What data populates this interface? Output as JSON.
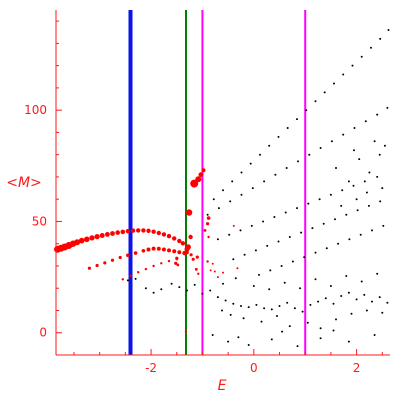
{
  "chart_data": {
    "type": "scatter",
    "title": "",
    "xlabel": "E",
    "ylabel": "<M>",
    "xlim": [
      -3.85,
      2.65
    ],
    "ylim": [
      -10,
      145
    ],
    "x_ticks": [
      -2,
      0,
      2
    ],
    "x_tick_labels": [
      "-2",
      "0",
      "2"
    ],
    "y_ticks": [
      0,
      50,
      100
    ],
    "y_tick_labels": [
      "0",
      "50",
      "100"
    ],
    "grid": false,
    "legend": "none",
    "colors": {
      "axes": "#ff1a1a",
      "red_points": "#ff0000",
      "black_points": "#000000",
      "blue_line": "#0a14e6",
      "green_line": "#008000",
      "magenta_line": "#ff00ff"
    },
    "vertical_lines": [
      {
        "x": -2.4,
        "color": "#0a14e6",
        "width": 4
      },
      {
        "x": -1.32,
        "color": "#008000",
        "width": 2
      },
      {
        "x": -1.0,
        "color": "#ff00ff",
        "width": 2
      },
      {
        "x": 1.0,
        "color": "#ff00ff",
        "width": 2
      }
    ],
    "series": [
      {
        "color": "#ff0000",
        "points": [
          [
            -3.82,
            37.5,
            3.5
          ],
          [
            -3.75,
            38.0,
            3.5
          ],
          [
            -3.68,
            38.5,
            3.5
          ],
          [
            -3.6,
            39.2,
            3.5
          ],
          [
            -3.52,
            40.0,
            3.2
          ],
          [
            -3.44,
            40.7,
            3.0
          ],
          [
            -3.35,
            41.4,
            2.8
          ],
          [
            -3.25,
            42.0,
            2.8
          ],
          [
            -3.15,
            42.6,
            2.6
          ],
          [
            -3.05,
            43.2,
            2.6
          ],
          [
            -2.95,
            43.7,
            2.5
          ],
          [
            -2.85,
            44.2,
            2.4
          ],
          [
            -2.75,
            44.6,
            2.4
          ],
          [
            -2.65,
            45.0,
            2.3
          ],
          [
            -2.55,
            45.3,
            2.3
          ],
          [
            -2.45,
            45.6,
            2.2
          ],
          [
            -2.35,
            45.9,
            2.2
          ],
          [
            -2.25,
            46.0,
            2.2
          ],
          [
            -2.15,
            46.0,
            2.2
          ],
          [
            -2.05,
            45.8,
            2.2
          ],
          [
            -1.95,
            45.4,
            2.2
          ],
          [
            -1.85,
            44.8,
            2.2
          ],
          [
            -1.75,
            44.2,
            2.2
          ],
          [
            -1.65,
            43.4,
            2.2
          ],
          [
            -1.55,
            42.4,
            2.2
          ],
          [
            -1.45,
            41.2,
            2.2
          ],
          [
            -1.38,
            40.2,
            2.2
          ],
          [
            -3.2,
            29.0,
            1.6
          ],
          [
            -3.05,
            30.2,
            1.6
          ],
          [
            -2.9,
            31.4,
            1.6
          ],
          [
            -2.75,
            32.6,
            1.6
          ],
          [
            -2.6,
            33.8,
            1.6
          ],
          [
            -2.45,
            34.8,
            1.8
          ],
          [
            -2.3,
            35.8,
            1.8
          ],
          [
            -2.15,
            36.8,
            1.8
          ],
          [
            -2.05,
            37.4,
            2.0
          ],
          [
            -1.95,
            37.8,
            2.0
          ],
          [
            -1.85,
            37.7,
            2.0
          ],
          [
            -1.75,
            37.4,
            2.0
          ],
          [
            -1.65,
            37.0,
            2.0
          ],
          [
            -1.55,
            36.6,
            2.0
          ],
          [
            -1.45,
            36.2,
            2.0
          ],
          [
            -1.35,
            35.8,
            2.2
          ],
          [
            -1.3,
            37.5,
            2.5
          ],
          [
            -2.55,
            24.0,
            1.2
          ],
          [
            -2.4,
            25.6,
            1.2
          ],
          [
            -2.25,
            27.2,
            1.2
          ],
          [
            -2.1,
            28.6,
            1.2
          ],
          [
            -1.95,
            30.0,
            1.2
          ],
          [
            -1.8,
            31.2,
            1.2
          ],
          [
            -1.65,
            32.2,
            1.2
          ],
          [
            -1.5,
            33.0,
            1.2
          ],
          [
            -1.52,
            31.2,
            1.6
          ],
          [
            -1.5,
            33.5,
            1.6
          ],
          [
            -1.48,
            30.5,
            1.4
          ],
          [
            -1.3,
            36.0,
            1.8
          ],
          [
            -1.22,
            35.0,
            1.6
          ],
          [
            -1.28,
            38.5,
            2.8
          ],
          [
            -1.26,
            54.0,
            3.2
          ],
          [
            -1.23,
            43.0,
            2.2
          ],
          [
            -1.18,
            33.0,
            1.6
          ],
          [
            -1.1,
            34.0,
            1.6
          ],
          [
            -1.12,
            28.5,
            1.4
          ],
          [
            -1.08,
            26.5,
            1.2
          ],
          [
            -1.16,
            67.0,
            4.0
          ],
          [
            -1.08,
            69.0,
            3.0
          ],
          [
            -1.03,
            71.0,
            2.4
          ],
          [
            -0.98,
            73.0,
            2.0
          ],
          [
            -0.88,
            51.5,
            1.8
          ],
          [
            -0.9,
            49.0,
            1.6
          ],
          [
            -0.95,
            46.0,
            1.4
          ],
          [
            -0.88,
            43.0,
            1.2
          ],
          [
            -0.9,
            32.0,
            1.2
          ],
          [
            -0.84,
            28.0,
            1.0
          ],
          [
            -0.8,
            31.0,
            1.0
          ],
          [
            -0.76,
            27.5,
            1.0
          ],
          [
            -0.7,
            25.0,
            1.0
          ],
          [
            -0.6,
            27.0,
            1.0
          ],
          [
            -0.39,
            48.0,
            1.0
          ],
          [
            -0.32,
            29.0,
            1.0
          ],
          [
            -1.32,
            0.5,
            1.2
          ]
        ]
      },
      {
        "color": "#000000",
        "points": [
          [
            -0.78,
            60,
            1
          ],
          [
            -0.6,
            64,
            1
          ],
          [
            -0.42,
            68,
            1
          ],
          [
            -0.24,
            72,
            1
          ],
          [
            -0.06,
            76,
            1
          ],
          [
            0.12,
            80,
            1
          ],
          [
            0.3,
            84,
            1
          ],
          [
            0.48,
            88,
            1
          ],
          [
            0.66,
            92,
            1
          ],
          [
            0.84,
            96,
            1
          ],
          [
            1.02,
            100,
            1
          ],
          [
            1.2,
            104,
            1
          ],
          [
            1.38,
            108,
            1
          ],
          [
            1.56,
            112,
            1
          ],
          [
            1.74,
            116,
            1
          ],
          [
            1.92,
            120,
            1
          ],
          [
            2.1,
            124,
            1
          ],
          [
            2.28,
            128,
            1
          ],
          [
            2.46,
            132,
            1
          ],
          [
            2.62,
            136,
            1
          ],
          [
            -0.9,
            53,
            1
          ],
          [
            -0.68,
            56,
            1
          ],
          [
            -0.46,
            59,
            1
          ],
          [
            -0.24,
            62,
            1
          ],
          [
            -0.02,
            65,
            1
          ],
          [
            0.2,
            68,
            1
          ],
          [
            0.42,
            71,
            1
          ],
          [
            0.64,
            74,
            1
          ],
          [
            0.86,
            77,
            1
          ],
          [
            1.08,
            80,
            1
          ],
          [
            1.3,
            83,
            1
          ],
          [
            1.52,
            86,
            1
          ],
          [
            1.74,
            89,
            1
          ],
          [
            1.96,
            92,
            1
          ],
          [
            2.18,
            95,
            1
          ],
          [
            2.4,
            98,
            1
          ],
          [
            2.6,
            101,
            1
          ],
          [
            -0.7,
            42,
            1
          ],
          [
            -0.48,
            44,
            1
          ],
          [
            -0.26,
            46,
            1
          ],
          [
            -0.04,
            48,
            1
          ],
          [
            0.18,
            50,
            1
          ],
          [
            0.4,
            52,
            1
          ],
          [
            0.62,
            54,
            1
          ],
          [
            0.84,
            56,
            1
          ],
          [
            1.06,
            58,
            1
          ],
          [
            1.28,
            60,
            1
          ],
          [
            1.5,
            62,
            1
          ],
          [
            1.72,
            64,
            1
          ],
          [
            1.94,
            66,
            1
          ],
          [
            2.16,
            68,
            1
          ],
          [
            2.4,
            70,
            1
          ],
          [
            -0.4,
            33,
            1
          ],
          [
            -0.18,
            35,
            1
          ],
          [
            0.04,
            37,
            1
          ],
          [
            0.26,
            39,
            1
          ],
          [
            0.48,
            41,
            1
          ],
          [
            0.7,
            43,
            1
          ],
          [
            0.92,
            45,
            1
          ],
          [
            1.14,
            47,
            1
          ],
          [
            1.36,
            49,
            1
          ],
          [
            1.58,
            51,
            1
          ],
          [
            1.8,
            53,
            1
          ],
          [
            2.02,
            55,
            1
          ],
          [
            2.24,
            57,
            1
          ],
          [
            2.46,
            59,
            1
          ],
          [
            0.1,
            26,
            1
          ],
          [
            0.32,
            28,
            1
          ],
          [
            0.54,
            30,
            1
          ],
          [
            0.76,
            32,
            1
          ],
          [
            0.98,
            34,
            1
          ],
          [
            1.2,
            36,
            1
          ],
          [
            1.42,
            38,
            1
          ],
          [
            1.64,
            40,
            1
          ],
          [
            1.86,
            42,
            1
          ],
          [
            2.08,
            44,
            1
          ],
          [
            2.3,
            46,
            1
          ],
          [
            2.52,
            48,
            1
          ],
          [
            -2.45,
            23.5,
            1
          ],
          [
            -2.3,
            24.2,
            1
          ],
          [
            -2.1,
            20.0,
            1
          ],
          [
            -1.95,
            18.0,
            1
          ],
          [
            -1.8,
            19.5,
            1
          ],
          [
            -1.6,
            22.0,
            1
          ],
          [
            -1.45,
            20.5,
            1
          ],
          [
            -1.3,
            19.0,
            1
          ],
          [
            -1.15,
            21.5,
            1
          ],
          [
            -1.0,
            17.5,
            1
          ],
          [
            -0.85,
            19.0,
            1
          ],
          [
            -0.7,
            16.0,
            1
          ],
          [
            -0.55,
            14.5,
            1
          ],
          [
            -0.4,
            13.0,
            1
          ],
          [
            -0.25,
            12.0,
            1
          ],
          [
            -0.1,
            11.5,
            1
          ],
          [
            0.05,
            12.5,
            1
          ],
          [
            0.2,
            11.0,
            1
          ],
          [
            0.35,
            10.5,
            1
          ],
          [
            0.5,
            12.0,
            1
          ],
          [
            0.65,
            13.5,
            1
          ],
          [
            0.8,
            11.0,
            1
          ],
          [
            0.95,
            9.5,
            1
          ],
          [
            1.1,
            12.5,
            1
          ],
          [
            1.25,
            14.0,
            1
          ],
          [
            1.4,
            15.5,
            1
          ],
          [
            1.55,
            13.0,
            1
          ],
          [
            1.7,
            16.5,
            1
          ],
          [
            1.85,
            18.0,
            1
          ],
          [
            2.0,
            15.0,
            1
          ],
          [
            2.15,
            17.0,
            1
          ],
          [
            2.3,
            14.0,
            1
          ],
          [
            2.45,
            16.0,
            1
          ],
          [
            2.6,
            13.5,
            1
          ],
          [
            -0.62,
            10.0,
            1
          ],
          [
            -0.45,
            8.0,
            1
          ],
          [
            -0.2,
            6.5,
            1
          ],
          [
            0.15,
            5.0,
            1
          ],
          [
            0.45,
            7.5,
            1
          ],
          [
            0.7,
            3.0,
            1
          ],
          [
            1.05,
            4.5,
            1
          ],
          [
            1.3,
            2.0,
            1
          ],
          [
            1.6,
            6.0,
            1
          ],
          [
            1.9,
            8.5,
            1
          ],
          [
            2.2,
            10.0,
            1
          ],
          [
            2.5,
            9.0,
            1
          ],
          [
            -0.5,
            -4.0,
            1
          ],
          [
            -0.1,
            -5.5,
            1
          ],
          [
            0.35,
            -3.0,
            1
          ],
          [
            0.85,
            -6.0,
            1
          ],
          [
            1.3,
            -2.5,
            1
          ],
          [
            1.85,
            -4.0,
            1
          ],
          [
            -0.8,
            -1.0,
            1
          ],
          [
            -0.3,
            -2.0,
            1
          ],
          [
            0.55,
            0.5,
            1
          ],
          [
            1.55,
            1.0,
            1
          ],
          [
            2.35,
            -1.0,
            1
          ],
          [
            -0.6,
            22.0,
            1
          ],
          [
            -0.35,
            24.5,
            1
          ],
          [
            0.0,
            21.0,
            1
          ],
          [
            0.3,
            19.5,
            1
          ],
          [
            0.6,
            22.5,
            1
          ],
          [
            0.9,
            20.0,
            1
          ],
          [
            1.2,
            24.0,
            1
          ],
          [
            1.5,
            21.0,
            1
          ],
          [
            1.8,
            25.5,
            1
          ],
          [
            2.1,
            23.0,
            1
          ],
          [
            2.4,
            26.5,
            1
          ],
          [
            1.6,
            74.0,
            1
          ],
          [
            1.85,
            68.0,
            1
          ],
          [
            2.05,
            78.0,
            1
          ],
          [
            2.25,
            72.0,
            1
          ],
          [
            2.45,
            80.0,
            1
          ],
          [
            2.55,
            84.0,
            1
          ],
          [
            1.95,
            82.0,
            1
          ],
          [
            2.35,
            86.0,
            1
          ],
          [
            2.0,
            60.0,
            1
          ],
          [
            2.2,
            63.0,
            1
          ],
          [
            1.7,
            57.0,
            1
          ],
          [
            2.5,
            65.0,
            1
          ]
        ]
      }
    ]
  }
}
